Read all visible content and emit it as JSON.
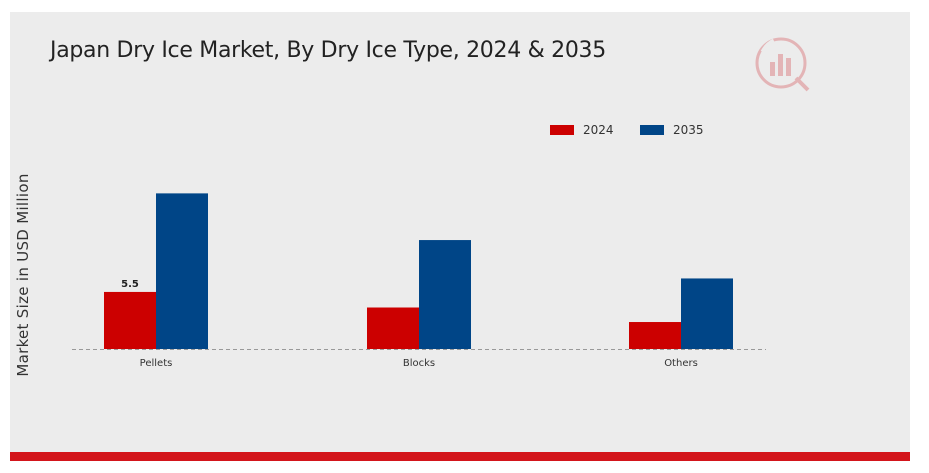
{
  "chart_data": {
    "type": "bar",
    "title": "Japan Dry Ice Market, By Dry Ice Type, 2024 & 2035",
    "xlabel": "",
    "ylabel": "Market Size in USD Million",
    "categories": [
      "Pellets",
      "Blocks",
      "Others"
    ],
    "series": [
      {
        "name": "2024",
        "color": "#cc0000",
        "values": [
          5.5,
          4.0,
          2.6
        ]
      },
      {
        "name": "2035",
        "color": "#004587",
        "values": [
          15.0,
          10.5,
          6.8
        ]
      }
    ],
    "data_labels": [
      {
        "series": "2024",
        "category": "Pellets",
        "text": "5.5"
      }
    ],
    "ylim": [
      0,
      16
    ],
    "grid": false,
    "baseline": "dashed",
    "legend_position": "top-right"
  },
  "branding": {
    "logo_icon": "market-research-logo-icon",
    "accent": "#d3151b"
  }
}
